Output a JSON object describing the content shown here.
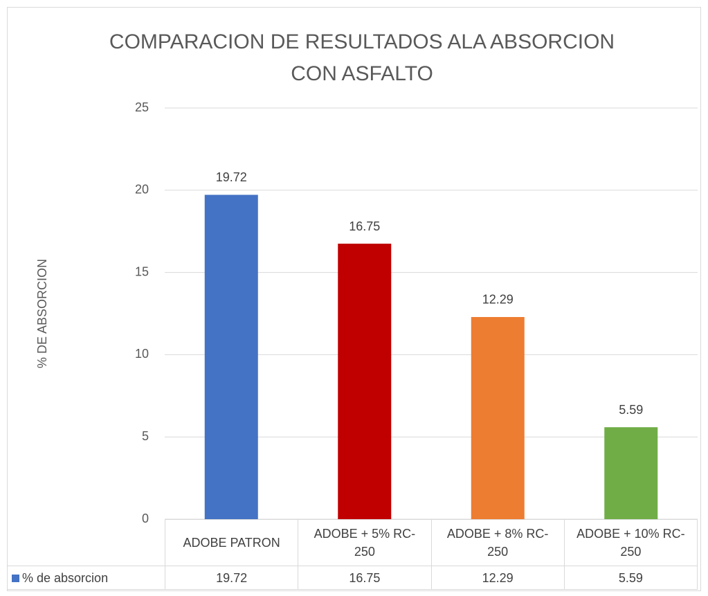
{
  "chart_data": {
    "type": "bar",
    "title": "COMPARACION DE RESULTADOS ALA ABSORCION CON ASFALTO",
    "y_label": "% DE ABSORCION",
    "categories": [
      "ADOBE PATRON",
      "ADOBE + 5% RC-250",
      "ADOBE + 8% RC-250",
      "ADOBE + 10% RC-250"
    ],
    "series": [
      {
        "name": "% de absorcion",
        "colors": [
          "#4472c4",
          "#c00000",
          "#ed7d31",
          "#70ad47"
        ],
        "values": [
          19.72,
          16.75,
          12.29,
          5.59
        ]
      }
    ],
    "ylim": [
      0,
      25
    ],
    "yticks": [
      0,
      5,
      10,
      15,
      20,
      25
    ],
    "grid": true,
    "data_table": true
  }
}
